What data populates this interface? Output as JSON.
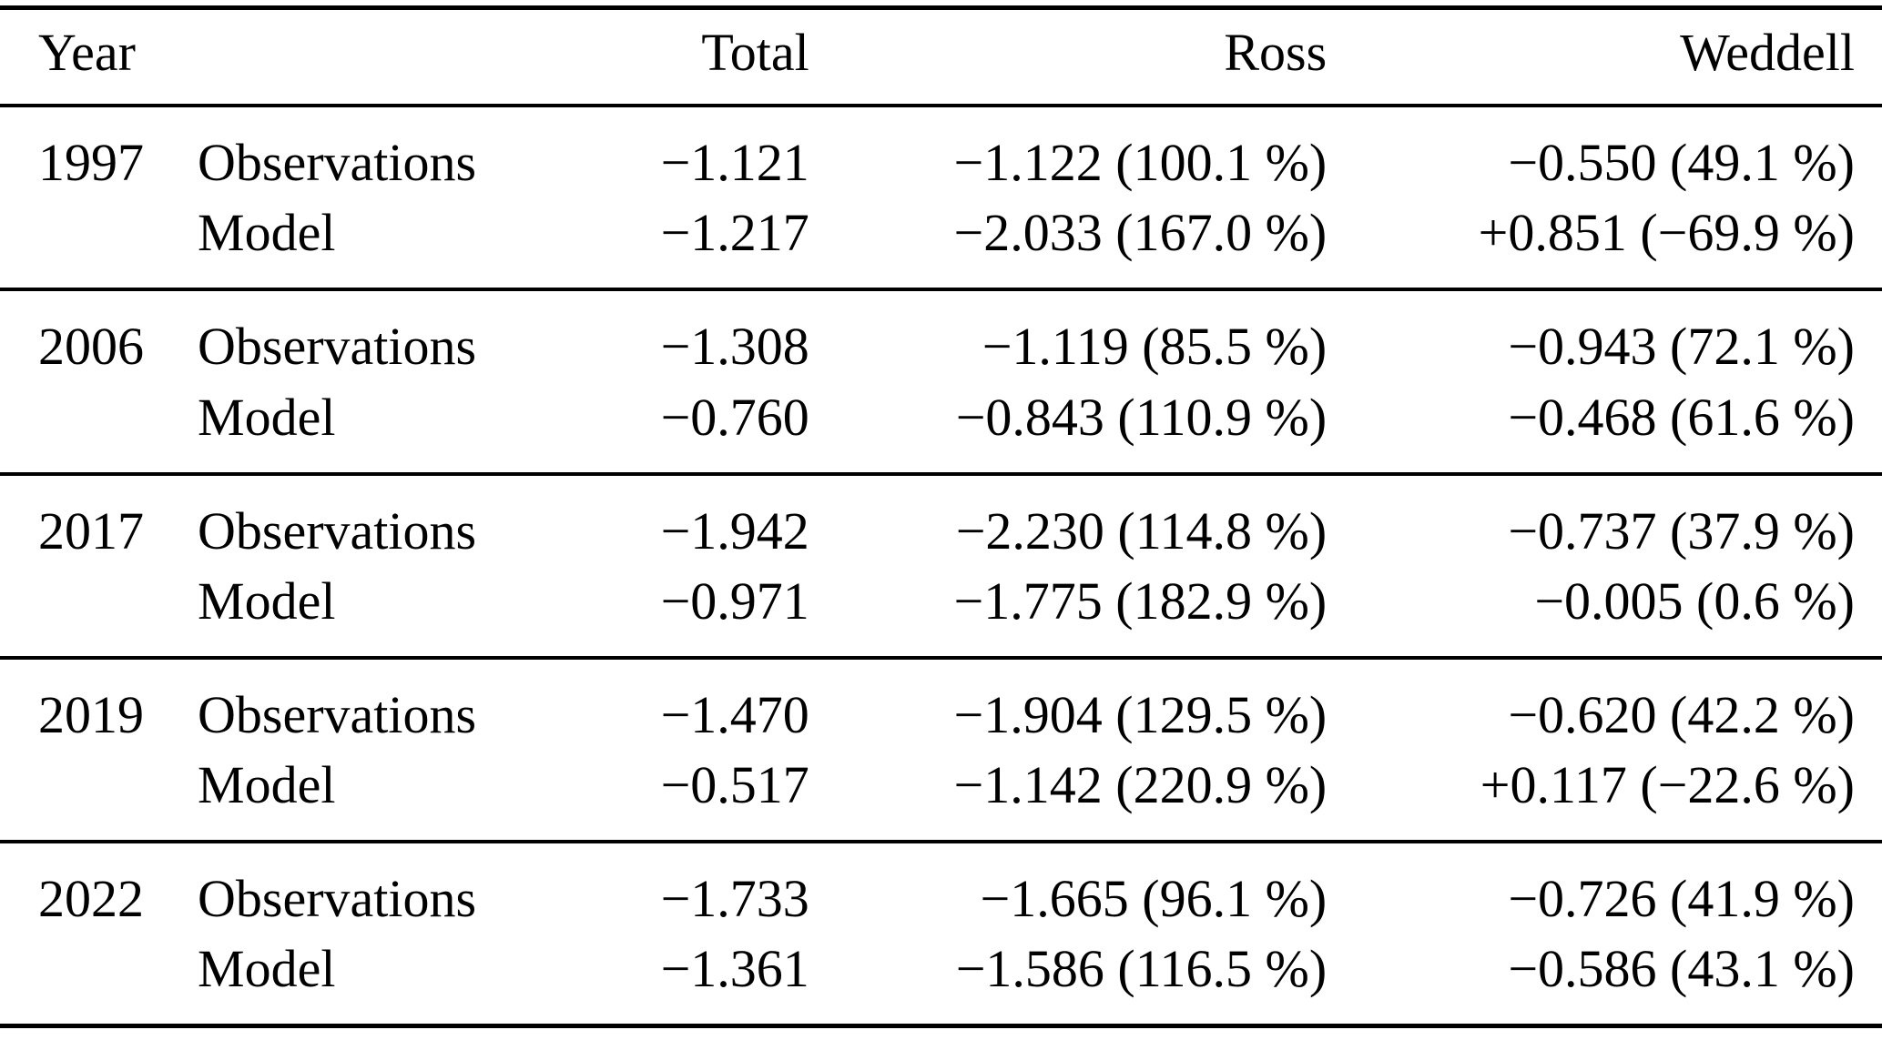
{
  "table": {
    "header": {
      "year": "Year",
      "label": "",
      "total": "Total",
      "ross": "Ross",
      "weddell": "Weddell"
    },
    "row_labels": {
      "observations": "Observations",
      "model": "Model"
    },
    "groups": [
      {
        "year": "1997",
        "obs": {
          "label": "Observations",
          "total": "−1.121",
          "ross": "−1.122 (100.1 %)",
          "weddell": "−0.550 (49.1 %)"
        },
        "model": {
          "label": "Model",
          "total": "−1.217",
          "ross": "−2.033 (167.0 %)",
          "weddell": "+0.851 (−69.9 %)"
        }
      },
      {
        "year": "2006",
        "obs": {
          "label": "Observations",
          "total": "−1.308",
          "ross": "−1.119 (85.5 %)",
          "weddell": "−0.943 (72.1 %)"
        },
        "model": {
          "label": "Model",
          "total": "−0.760",
          "ross": "−0.843 (110.9 %)",
          "weddell": "−0.468 (61.6 %)"
        }
      },
      {
        "year": "2017",
        "obs": {
          "label": "Observations",
          "total": "−1.942",
          "ross": "−2.230 (114.8 %)",
          "weddell": "−0.737 (37.9 %)"
        },
        "model": {
          "label": "Model",
          "total": "−0.971",
          "ross": "−1.775 (182.9 %)",
          "weddell": "−0.005 (0.6 %)"
        }
      },
      {
        "year": "2019",
        "obs": {
          "label": "Observations",
          "total": "−1.470",
          "ross": "−1.904 (129.5 %)",
          "weddell": "−0.620 (42.2 %)"
        },
        "model": {
          "label": "Model",
          "total": "−0.517",
          "ross": "−1.142 (220.9 %)",
          "weddell": "+0.117 (−22.6 %)"
        }
      },
      {
        "year": "2022",
        "obs": {
          "label": "Observations",
          "total": "−1.733",
          "ross": "−1.665 (96.1 %)",
          "weddell": "−0.726 (41.9 %)"
        },
        "model": {
          "label": "Model",
          "total": "−1.361",
          "ross": "−1.586 (116.5 %)",
          "weddell": "−0.586 (43.1 %)"
        }
      }
    ]
  },
  "chart_data": {
    "type": "table",
    "columns": [
      "Year",
      "",
      "Total",
      "Ross",
      "Weddell"
    ],
    "rows": [
      [
        "1997",
        "Observations",
        "−1.121",
        "−1.122 (100.1 %)",
        "−0.550 (49.1 %)"
      ],
      [
        "1997",
        "Model",
        "−1.217",
        "−2.033 (167.0 %)",
        "+0.851 (−69.9 %)"
      ],
      [
        "2006",
        "Observations",
        "−1.308",
        "−1.119 (85.5 %)",
        "−0.943 (72.1 %)"
      ],
      [
        "2006",
        "Model",
        "−0.760",
        "−0.843 (110.9 %)",
        "−0.468 (61.6 %)"
      ],
      [
        "2017",
        "Observations",
        "−1.942",
        "−2.230 (114.8 %)",
        "−0.737 (37.9 %)"
      ],
      [
        "2017",
        "Model",
        "−0.971",
        "−1.775 (182.9 %)",
        "−0.005 (0.6 %)"
      ],
      [
        "2019",
        "Observations",
        "−1.470",
        "−1.904 (129.5 %)",
        "−0.620 (42.2 %)"
      ],
      [
        "2019",
        "Model",
        "−0.517",
        "−1.142 (220.9 %)",
        "+0.117 (−22.6 %)"
      ],
      [
        "2022",
        "Observations",
        "−1.733",
        "−1.665 (96.1 %)",
        "−0.726 (41.9 %)"
      ],
      [
        "2022",
        "Model",
        "−1.361",
        "−1.586 (116.5 %)",
        "−0.586 (43.1 %)"
      ]
    ]
  }
}
